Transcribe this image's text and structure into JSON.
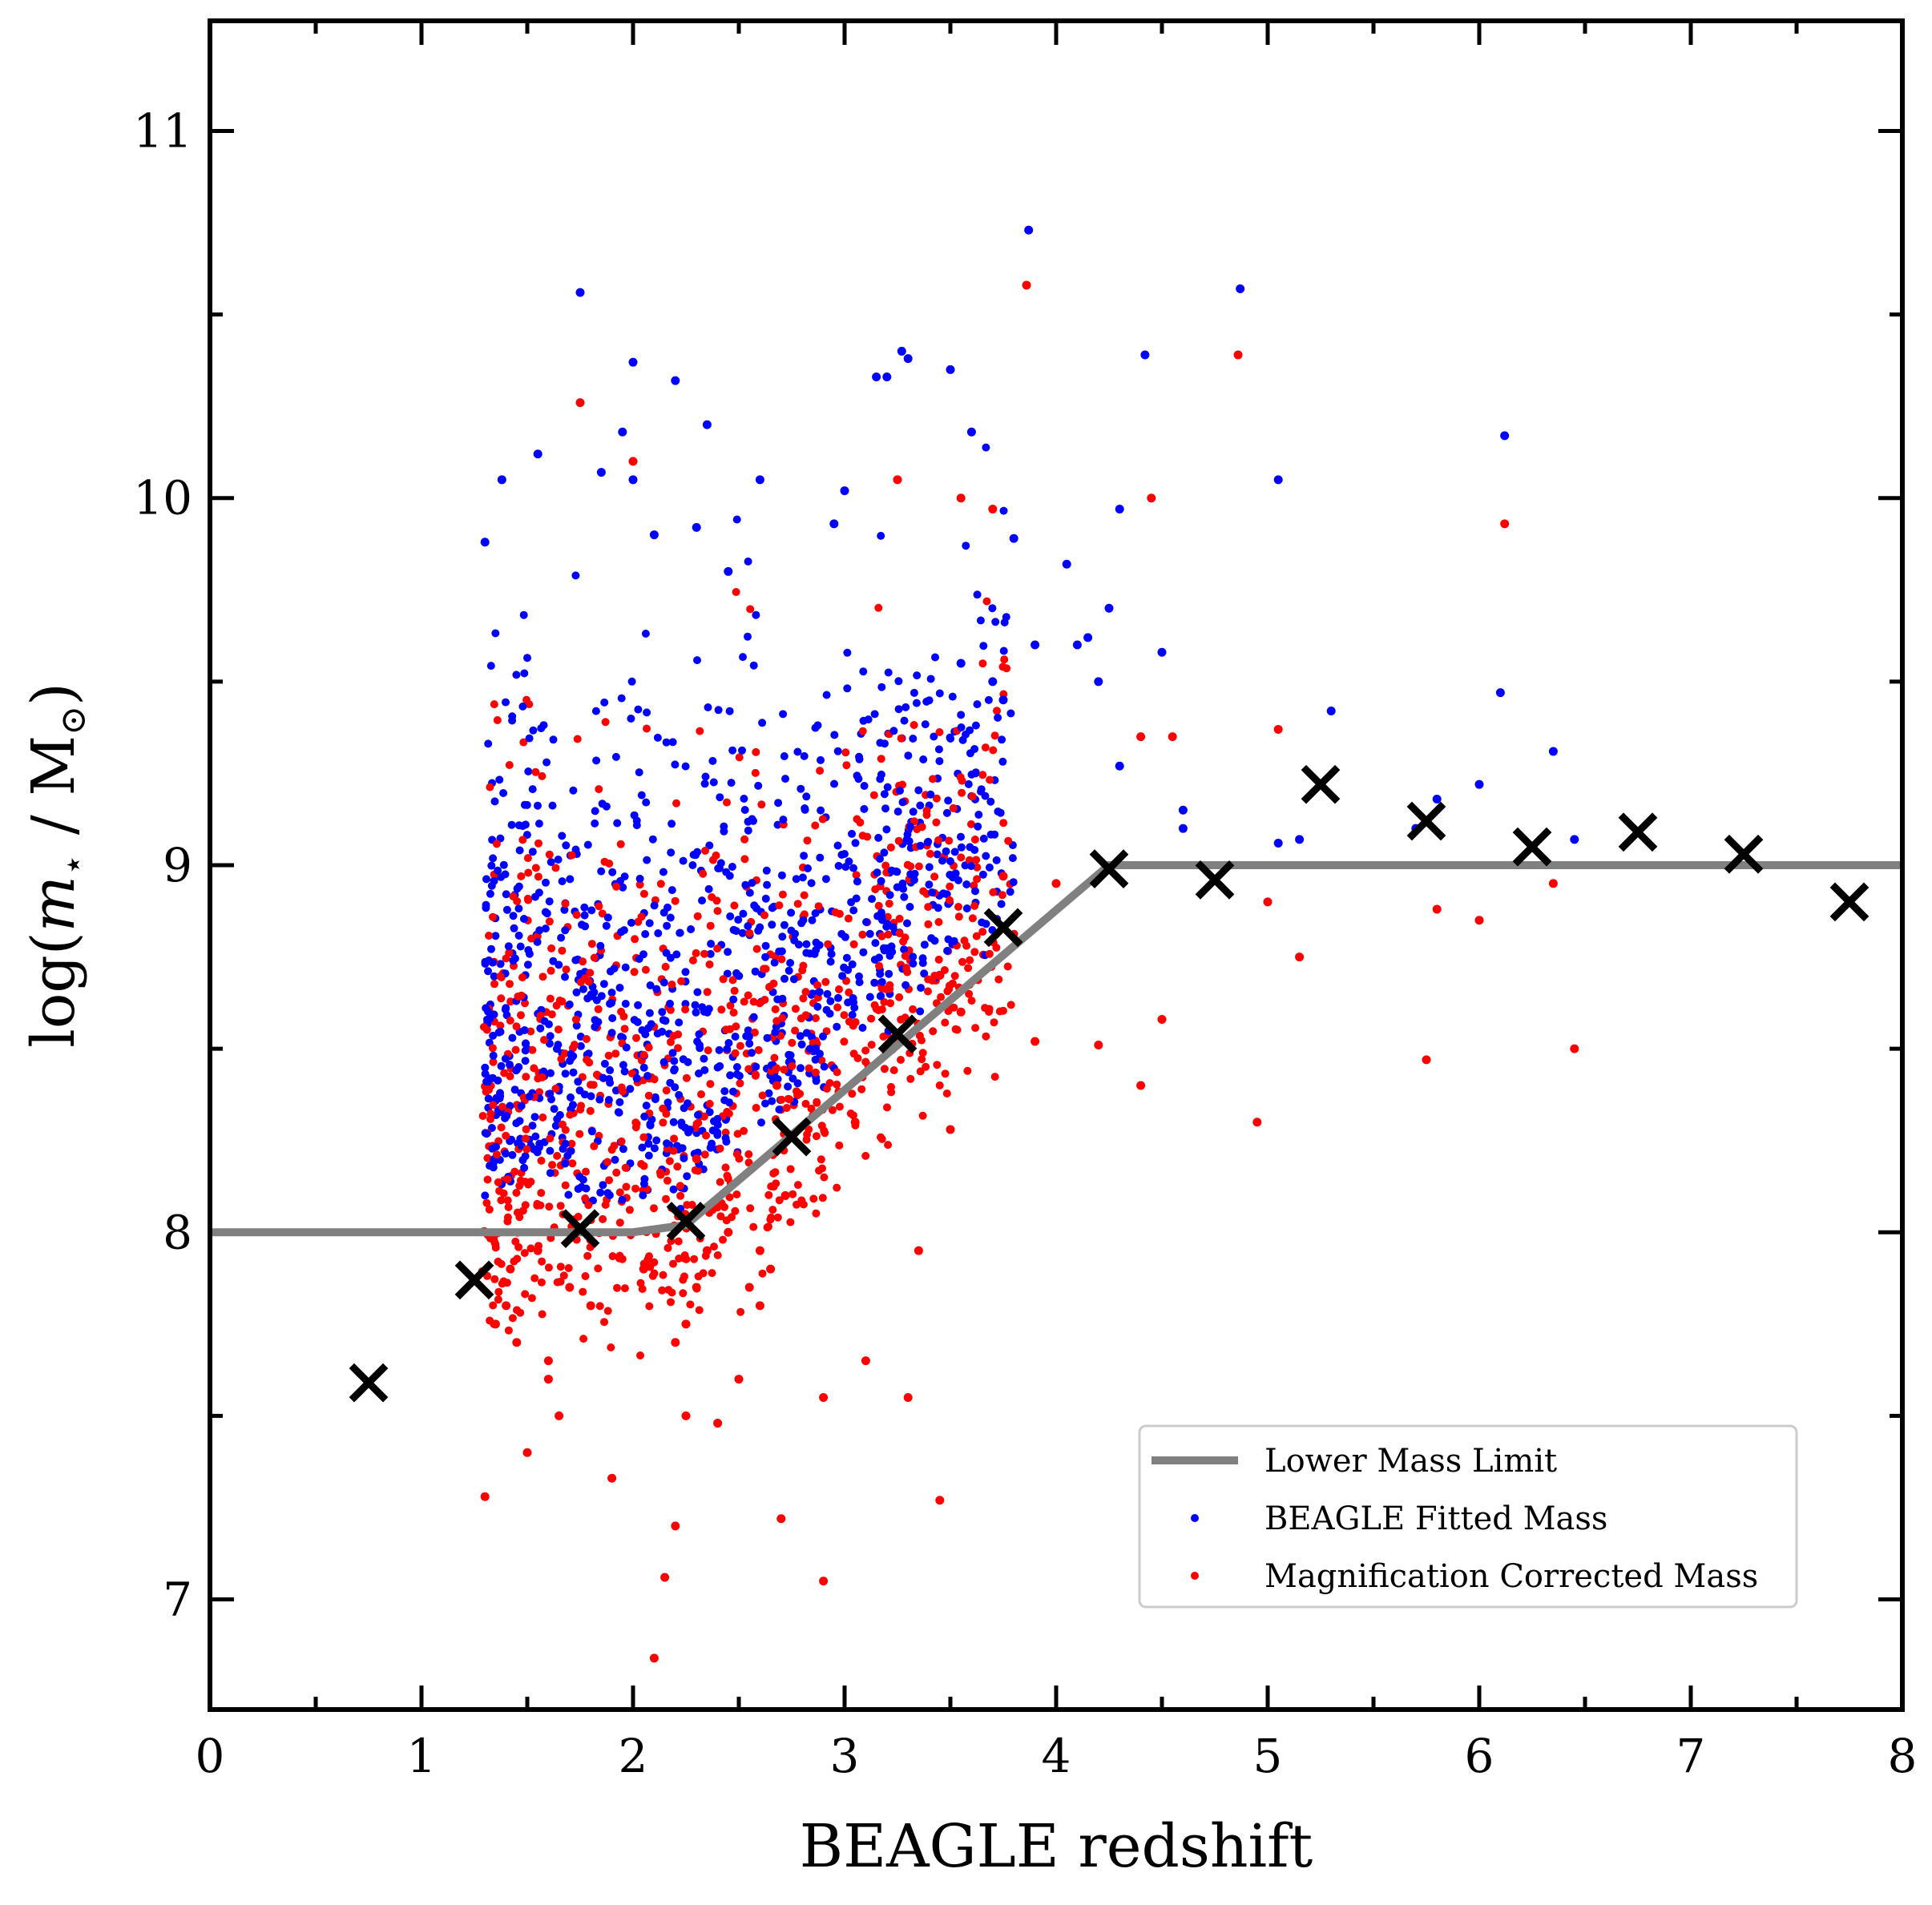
{
  "chart_data": {
    "type": "scatter",
    "xlabel": "BEAGLE redshift",
    "ylabel_parts": {
      "prefix": "log(",
      "var": "m",
      "sub": "⋆",
      "mid": " / M",
      "msub": "⊙",
      "suffix": ")"
    },
    "xlim": [
      0,
      8
    ],
    "ylim": [
      6.7,
      11.3
    ],
    "xticks": [
      0,
      1,
      2,
      3,
      4,
      5,
      6,
      7,
      8
    ],
    "yticks": [
      7,
      8,
      9,
      10,
      11
    ],
    "grid": false,
    "legend_position": "lower-right",
    "legend": [
      {
        "label": "Lower Mass Limit",
        "kind": "line",
        "color": "#808080"
      },
      {
        "label": "BEAGLE Fitted Mass",
        "kind": "marker",
        "color": "#0000ff"
      },
      {
        "label": "Magnification Corrected Mass",
        "kind": "marker",
        "color": "#ff0000"
      }
    ],
    "mass_limit": {
      "color": "#808080",
      "x": [
        0,
        2.0,
        2.25,
        4.25,
        8
      ],
      "y": [
        8.0,
        8.0,
        8.02,
        9.0,
        9.0
      ]
    },
    "binned_markers": {
      "marker": "x",
      "color": "#000000",
      "x": [
        0.75,
        1.25,
        1.75,
        2.25,
        2.75,
        3.25,
        3.75,
        4.25,
        4.75,
        5.25,
        5.75,
        6.25,
        6.75,
        7.25,
        7.75
      ],
      "y": [
        7.59,
        7.87,
        8.01,
        8.03,
        8.26,
        8.54,
        8.83,
        8.99,
        8.96,
        9.22,
        9.12,
        9.05,
        9.09,
        9.03,
        8.9
      ]
    },
    "series": [
      {
        "name": "BEAGLE Fitted Mass",
        "color": "#0000ff",
        "x": [
          1.75,
          3.87,
          4.87,
          3.2,
          3.27,
          2.0,
          2.2,
          3.5,
          2.35,
          1.95,
          3.3,
          3.15,
          4.42,
          1.85,
          2.0,
          4.3,
          1.38,
          1.55,
          2.6,
          2.95,
          3.6,
          3.0,
          6.12,
          5.05,
          2.1,
          2.45,
          3.8,
          1.3,
          4.05,
          4.25,
          2.3,
          4.5,
          5.3,
          6.1,
          5.8,
          6.35,
          6.0,
          5.7,
          4.6,
          5.05,
          5.15,
          6.45,
          3.75,
          3.9,
          4.1,
          3.55,
          3.7,
          4.2,
          4.15,
          4.6,
          4.3
        ],
        "y": [
          10.56,
          10.73,
          10.57,
          10.33,
          10.4,
          10.37,
          10.32,
          10.35,
          10.2,
          10.18,
          10.38,
          10.33,
          10.39,
          10.07,
          10.05,
          9.97,
          10.05,
          10.12,
          10.05,
          9.93,
          10.18,
          10.02,
          10.17,
          10.05,
          9.9,
          9.8,
          9.89,
          9.88,
          9.82,
          9.7,
          9.92,
          9.58,
          9.42,
          9.47,
          9.18,
          9.31,
          9.22,
          9.1,
          9.1,
          9.06,
          9.07,
          9.07,
          9.45,
          9.6,
          9.6,
          9.55,
          9.5,
          9.5,
          9.62,
          9.15,
          9.27
        ]
      },
      {
        "name": "Magnification Corrected Mass",
        "color": "#ff0000",
        "x": [
          3.86,
          4.86,
          1.75,
          2.0,
          4.45,
          6.12,
          3.25,
          3.55,
          3.7,
          4.4,
          5.05,
          5.0,
          5.15,
          5.8,
          5.75,
          6.0,
          6.35,
          6.45,
          4.5,
          4.4,
          4.2,
          3.9,
          3.75,
          3.5,
          3.35,
          3.3,
          3.1,
          2.9,
          2.7,
          2.4,
          2.2,
          2.15,
          2.1,
          1.9,
          1.5,
          1.3,
          3.45,
          2.9,
          2.25,
          2.2,
          1.6,
          1.65,
          2.5,
          2.3,
          2.6,
          2.65,
          1.45,
          1.35,
          1.42,
          1.55,
          1.7,
          1.8,
          2.05,
          2.25,
          2.35,
          2.55,
          1.4,
          1.6,
          2.45,
          2.6,
          4.55,
          4.0,
          4.95,
          2.72,
          3.05,
          3.55,
          3.45,
          2.68,
          2.3
        ],
        "y": [
          10.58,
          10.39,
          10.26,
          10.1,
          10.0,
          9.93,
          10.05,
          10.0,
          9.97,
          9.35,
          9.37,
          8.9,
          8.75,
          8.88,
          8.47,
          8.85,
          8.95,
          8.5,
          8.58,
          8.4,
          8.51,
          8.52,
          8.97,
          8.28,
          7.95,
          7.55,
          7.65,
          7.55,
          7.22,
          7.48,
          7.2,
          7.06,
          6.84,
          7.33,
          7.4,
          7.28,
          7.27,
          7.05,
          7.5,
          7.7,
          7.65,
          7.5,
          7.6,
          7.85,
          7.8,
          7.9,
          7.7,
          7.75,
          7.9,
          7.95,
          7.85,
          7.8,
          7.9,
          7.75,
          7.95,
          7.85,
          7.8,
          7.6,
          8.0,
          7.95,
          9.35,
          8.95,
          8.3,
          8.1,
          8.3,
          8.6,
          8.7,
          8.4,
          8.2
        ]
      }
    ]
  }
}
